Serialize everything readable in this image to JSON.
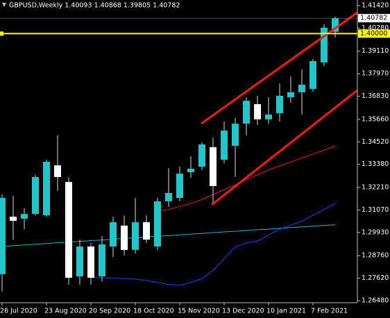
{
  "chart_data": {
    "type": "candlestick",
    "title": "GBPUSD,Weekly  1.40093 1.40868 1.39805 1.40782",
    "categories": [
      "26 Jul 2020",
      null,
      null,
      null,
      "23 Aug 2020",
      null,
      null,
      null,
      "20 Sep 2020",
      null,
      null,
      null,
      "18 Oct 2020",
      null,
      null,
      null,
      "15 Nov 2020",
      null,
      null,
      null,
      "13 Dec 2020",
      null,
      null,
      null,
      "10 Jan 2021",
      null,
      null,
      null,
      "7 Feb 2021",
      null,
      null
    ],
    "open": [
      1.2782,
      1.3073,
      1.3063,
      1.3087,
      1.308,
      1.3333,
      1.3249,
      1.2771,
      1.2922,
      1.2771,
      1.2922,
      1.3028,
      1.2905,
      1.3045,
      1.2922,
      1.3151,
      1.3168,
      1.3298,
      1.3326,
      1.3425,
      1.3361,
      1.3432,
      1.3544,
      1.3643,
      1.3566,
      1.3597,
      1.3678,
      1.3703,
      1.372,
      1.3854,
      1.40093
    ],
    "high": [
      1.3186,
      1.3179,
      1.3116,
      1.3284,
      1.3361,
      1.3485,
      1.3274,
      1.2957,
      1.294,
      1.2975,
      1.3073,
      1.308,
      1.3168,
      1.308,
      1.3168,
      1.3319,
      1.3326,
      1.3379,
      1.3449,
      1.3474,
      1.3555,
      1.3573,
      1.3678,
      1.3685,
      1.3678,
      1.3748,
      1.3783,
      1.3819,
      1.3871,
      1.4047,
      1.40868
    ],
    "low": [
      1.2694,
      1.2957,
      1.301,
      1.308,
      1.3073,
      1.3203,
      1.2729,
      1.2729,
      1.2729,
      1.2746,
      1.2869,
      1.2877,
      1.2887,
      1.294,
      1.2905,
      1.3123,
      1.3151,
      1.327,
      1.3309,
      1.3133,
      1.3344,
      1.3274,
      1.3485,
      1.3537,
      1.3544,
      1.3555,
      1.365,
      1.359,
      1.3706,
      1.3836,
      1.39805
    ],
    "close": [
      1.3168,
      1.3052,
      1.3087,
      1.3274,
      1.3351,
      1.3274,
      1.2764,
      1.2922,
      1.2764,
      1.2933,
      1.3045,
      1.2905,
      1.3045,
      1.2957,
      1.3151,
      1.3193,
      1.3291,
      1.3316,
      1.3439,
      1.3228,
      1.3509,
      1.3544,
      1.366,
      1.3566,
      1.359,
      1.3685,
      1.3703,
      1.3741,
      1.3861,
      1.403,
      1.40782
    ],
    "up_color": "#22c6ca",
    "down_color": "#ffffff",
    "wick_color": "#d8d8d8",
    "lines": [
      {
        "color": "#20b8c8",
        "values": [
          1.2922,
          1.2926,
          1.293,
          1.2933,
          1.2937,
          1.2941,
          1.2944,
          1.2948,
          1.2952,
          1.2955,
          1.2959,
          1.2963,
          1.2966,
          1.297,
          1.2974,
          1.2977,
          1.2981,
          1.2985,
          1.2988,
          1.2992,
          1.2996,
          1.2999,
          1.3003,
          1.3007,
          1.301,
          1.3014,
          1.3018,
          1.3021,
          1.3025,
          1.3029,
          1.3032
        ]
      },
      {
        "color": "#2040ff",
        "values": [
          null,
          null,
          null,
          null,
          null,
          null,
          null,
          null,
          1.2764,
          1.2764,
          1.2762,
          1.276,
          1.2757,
          1.275,
          1.274,
          1.273,
          1.2725,
          1.274,
          1.276,
          1.28,
          1.286,
          1.292,
          1.294,
          1.295,
          1.298,
          1.301,
          1.303,
          1.305,
          1.308,
          1.311,
          1.314
        ]
      },
      {
        "color": "#e02020",
        "values": [
          null,
          null,
          null,
          null,
          null,
          null,
          null,
          null,
          null,
          null,
          null,
          null,
          null,
          null,
          1.31,
          1.311,
          1.3125,
          1.314,
          1.316,
          1.3185,
          1.321,
          1.3235,
          1.326,
          1.3285,
          1.331,
          1.333,
          1.335,
          1.337,
          1.339,
          1.341,
          1.3432
        ]
      }
    ],
    "level": {
      "value": 1.4,
      "label": "1.40000",
      "color": "#ffff00"
    },
    "bid": {
      "value": 1.40782,
      "label": "1.40782"
    },
    "ylim": [
      1.26375,
      1.41701
    ],
    "yticks": [
      {
        "value": 1.4142,
        "label": "1.41420"
      },
      {
        "value": 1.4028,
        "label": "1.40280"
      },
      {
        "value": 1.3911,
        "label": "1.39110"
      },
      {
        "value": 1.3797,
        "label": "1.37970"
      },
      {
        "value": 1.3683,
        "label": "1.36830"
      },
      {
        "value": 1.3566,
        "label": "1.35660"
      },
      {
        "value": 1.3452,
        "label": "1.34520"
      },
      {
        "value": 1.3338,
        "label": "1.33380"
      },
      {
        "value": 1.3221,
        "label": "1.32210"
      },
      {
        "value": 1.3107,
        "label": "1.31070"
      },
      {
        "value": 1.2993,
        "label": "1.29930"
      },
      {
        "value": 1.2876,
        "label": "1.28760"
      },
      {
        "value": 1.2762,
        "label": "1.27620"
      },
      {
        "value": 1.2648,
        "label": "1.26480"
      }
    ],
    "grid": false
  }
}
